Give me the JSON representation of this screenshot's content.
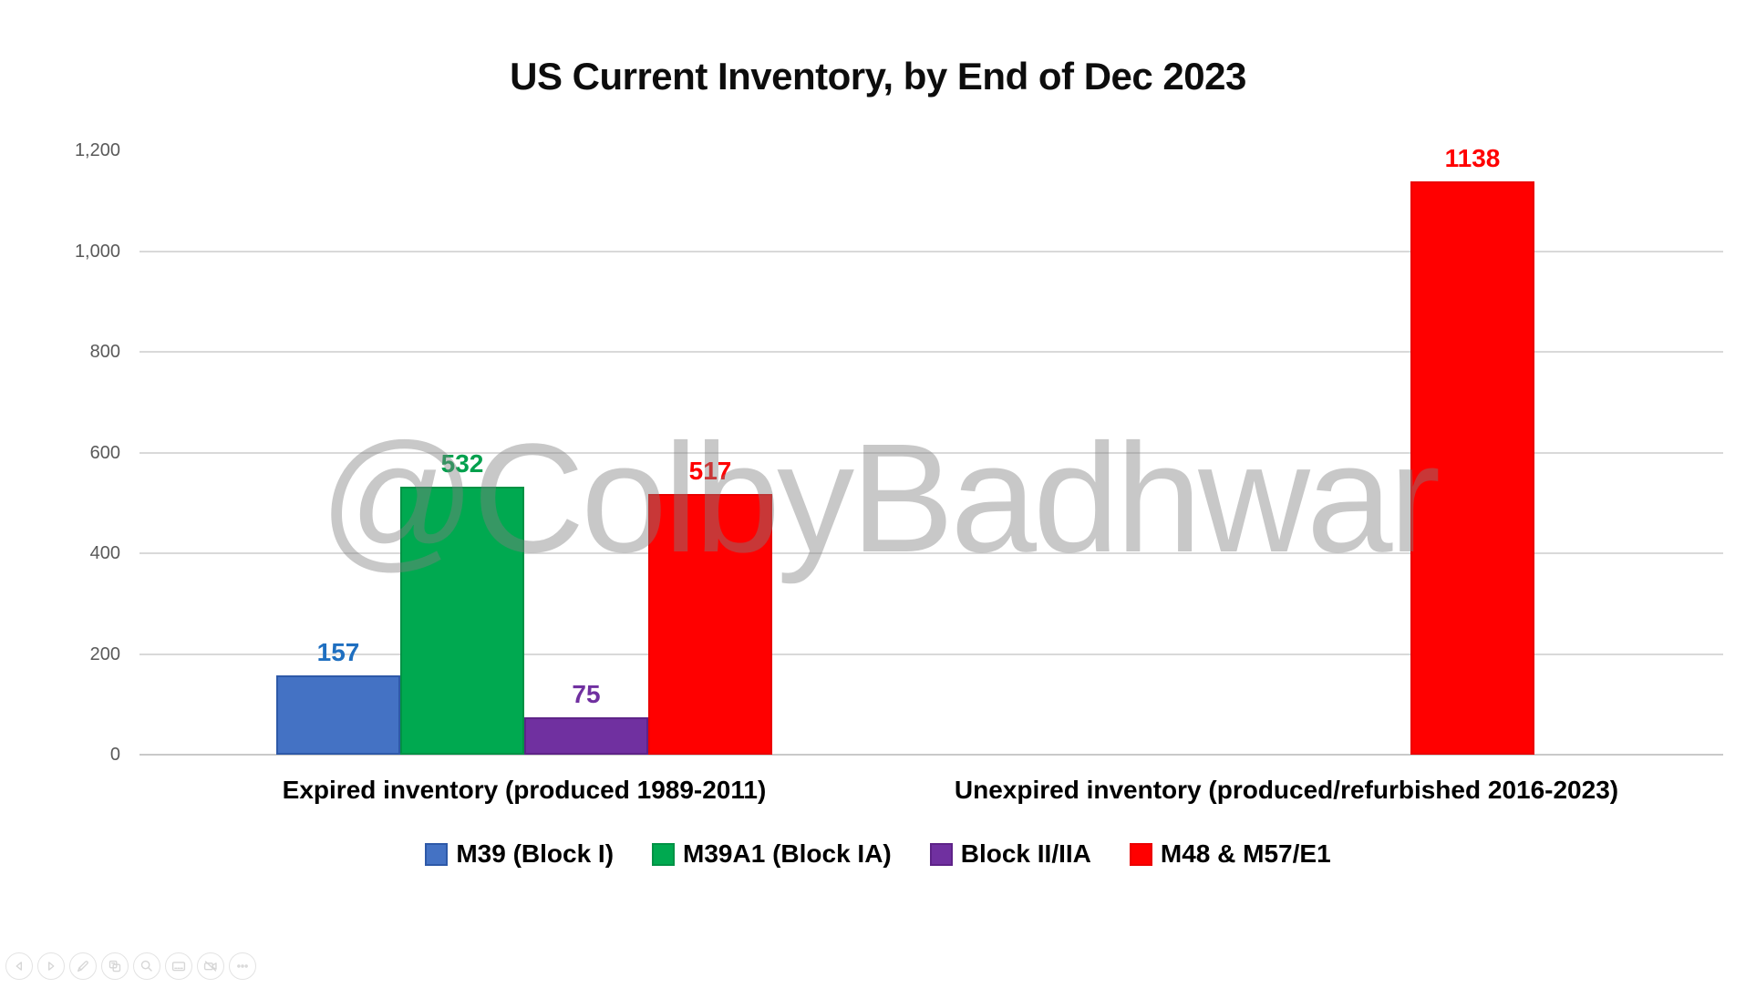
{
  "title": "US Current Inventory, by End of Dec 2023",
  "watermark": "@ColbyBadhwar",
  "chart_data": {
    "type": "bar",
    "title": "US Current Inventory, by End of Dec 2023",
    "categories": [
      "Expired inventory (produced 1989-2011)",
      "Unexpired inventory (produced/refurbished 2016-2023)"
    ],
    "series": [
      {
        "name": "M39 (Block I)",
        "values": [
          157,
          null
        ],
        "color": "#4472C4",
        "border_color": "#2E59A8",
        "label_color": "#1F6FC0"
      },
      {
        "name": "M39A1 (Block IA)",
        "values": [
          532,
          null
        ],
        "color": "#00A950",
        "border_color": "#009245",
        "label_color": "#00A04D"
      },
      {
        "name": "Block II/IIA",
        "values": [
          75,
          null
        ],
        "color": "#7030A0",
        "border_color": "#5E2388",
        "label_color": "#7030A0"
      },
      {
        "name": "M48 & M57/E1",
        "values": [
          517,
          1138
        ],
        "color": "#FF0000",
        "border_color": "#EB0000",
        "label_color": "#FF0000"
      }
    ],
    "data_labels": [
      "157",
      "532",
      "75",
      "517",
      "1138"
    ],
    "ylim": [
      0,
      1200
    ],
    "y_ticks": [
      {
        "value": 0,
        "label": "0"
      },
      {
        "value": 200,
        "label": "200"
      },
      {
        "value": 400,
        "label": "400"
      },
      {
        "value": 600,
        "label": "600"
      },
      {
        "value": 800,
        "label": "800"
      },
      {
        "value": 1000,
        "label": "1,000"
      },
      {
        "value": 1200,
        "label": "1,200"
      }
    ],
    "grid": true,
    "legend_position": "bottom",
    "xlabel": "",
    "ylabel": ""
  },
  "toolbar": {
    "icons": [
      {
        "icon": "step-backward",
        "name": "previous"
      },
      {
        "icon": "step-forward",
        "name": "next"
      },
      {
        "icon": "pencil",
        "name": "edit"
      },
      {
        "icon": "copy",
        "name": "copy"
      },
      {
        "icon": "magnifier",
        "name": "zoom"
      },
      {
        "icon": "notes-card",
        "name": "notes"
      },
      {
        "icon": "video-off",
        "name": "video-off"
      },
      {
        "icon": "ellipsis",
        "name": "more-options"
      }
    ]
  }
}
